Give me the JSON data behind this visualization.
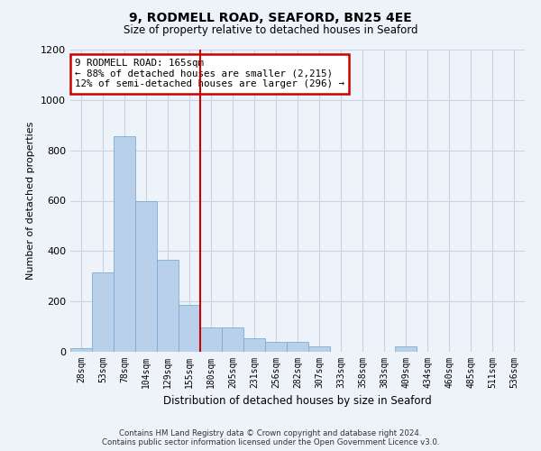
{
  "title_line1": "9, RODMELL ROAD, SEAFORD, BN25 4EE",
  "title_line2": "Size of property relative to detached houses in Seaford",
  "xlabel": "Distribution of detached houses by size in Seaford",
  "ylabel": "Number of detached properties",
  "categories": [
    "28sqm",
    "53sqm",
    "78sqm",
    "104sqm",
    "129sqm",
    "155sqm",
    "180sqm",
    "205sqm",
    "231sqm",
    "256sqm",
    "282sqm",
    "307sqm",
    "333sqm",
    "358sqm",
    "383sqm",
    "409sqm",
    "434sqm",
    "460sqm",
    "485sqm",
    "511sqm",
    "536sqm"
  ],
  "values": [
    15,
    315,
    855,
    600,
    365,
    185,
    95,
    95,
    55,
    40,
    40,
    20,
    0,
    0,
    0,
    20,
    0,
    0,
    0,
    0,
    0
  ],
  "bar_color": "#b8d0ea",
  "bar_edge_color": "#7aadd4",
  "vline_x": 5.5,
  "vline_color": "#cc0000",
  "annotation_text": "9 RODMELL ROAD: 165sqm\n← 88% of detached houses are smaller (2,215)\n12% of semi-detached houses are larger (296) →",
  "annotation_box_color": "#ffffff",
  "annotation_box_edge": "#cc0000",
  "ylim": [
    0,
    1200
  ],
  "yticks": [
    0,
    200,
    400,
    600,
    800,
    1000,
    1200
  ],
  "grid_color": "#c8d4e8",
  "footer_line1": "Contains HM Land Registry data © Crown copyright and database right 2024.",
  "footer_line2": "Contains public sector information licensed under the Open Government Licence v3.0.",
  "bg_color": "#eef2f9"
}
